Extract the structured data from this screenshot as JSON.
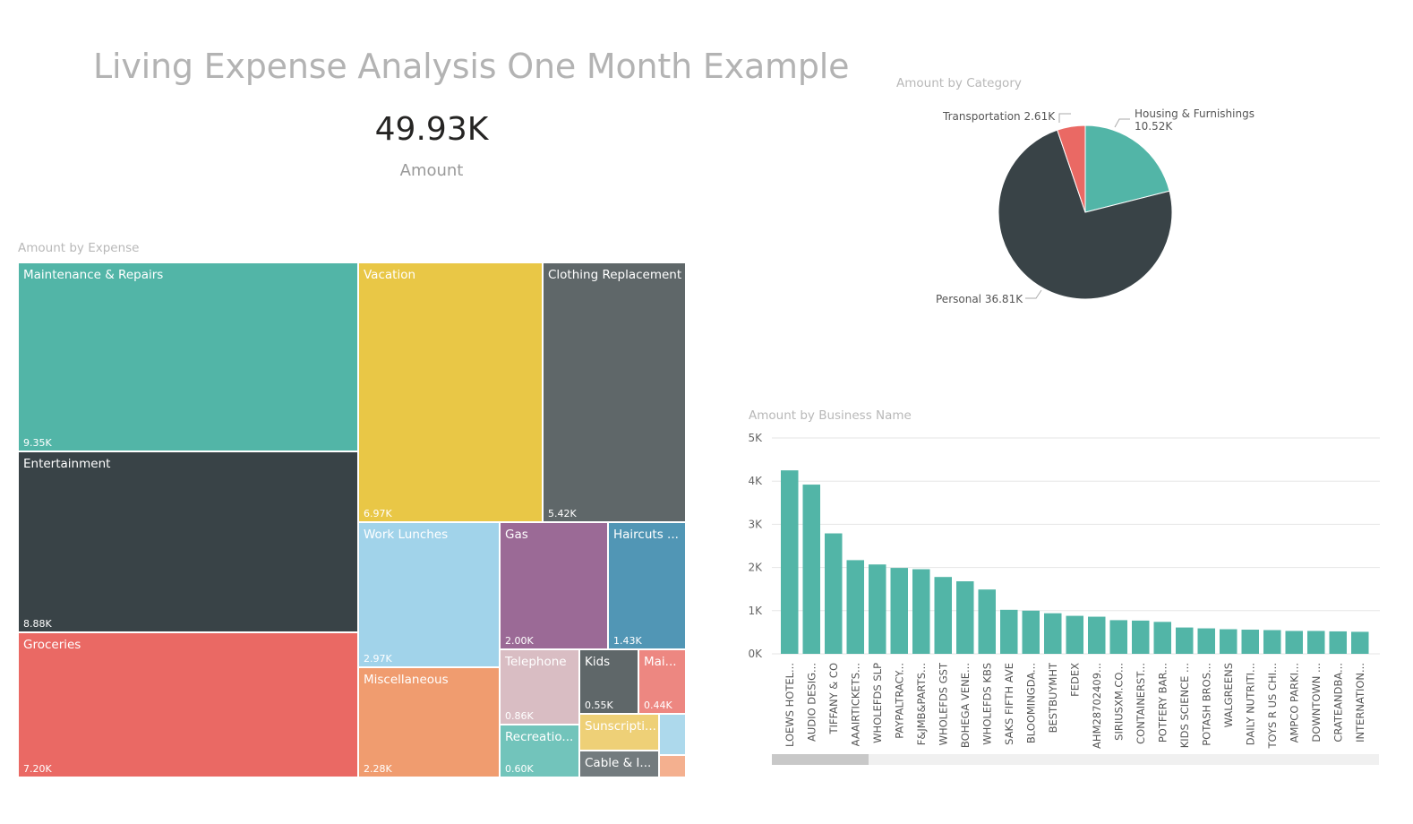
{
  "header": {
    "title": "Living Expense Analysis One Month Example",
    "kpi_value": "49.93K",
    "kpi_label": "Amount"
  },
  "treemap": {
    "title": "Amount by Expense",
    "items": [
      {
        "label": "Maintenance & Repairs",
        "value": "9.35K",
        "color": "#52b5a7"
      },
      {
        "label": "Entertainment",
        "value": "8.88K",
        "color": "#394347"
      },
      {
        "label": "Groceries",
        "value": "7.20K",
        "color": "#ea6964"
      },
      {
        "label": "Vacation",
        "value": "6.97K",
        "color": "#e9c746"
      },
      {
        "label": "Clothing Replacement",
        "value": "5.42K",
        "color": "#5f6769"
      },
      {
        "label": "Work Lunches",
        "value": "2.97K",
        "color": "#a1d3ea"
      },
      {
        "label": "Miscellaneous",
        "value": "2.28K",
        "color": "#f09c6f"
      },
      {
        "label": "Gas",
        "value": "2.00K",
        "color": "#9b6a96"
      },
      {
        "label": "Haircuts ...",
        "value": "1.43K",
        "color": "#5196b5"
      },
      {
        "label": "Telephone",
        "value": "0.86K",
        "color": "#d9bdc3"
      },
      {
        "label": "Kids",
        "value": "0.55K",
        "color": "#5f6769"
      },
      {
        "label": "Mai...",
        "value": "0.44K",
        "color": "#ed8781"
      },
      {
        "label": "Recreatio...",
        "value": "0.60K",
        "color": "#72c4bb"
      },
      {
        "label": "Sunscripti...",
        "value": "",
        "color": "#eed077"
      },
      {
        "label": "Cable & I...",
        "value": "",
        "color": "#737b7e"
      },
      {
        "label": "",
        "value": "",
        "color": "#add9ec"
      },
      {
        "label": "",
        "value": "",
        "color": "#f4b08f"
      }
    ]
  },
  "pie": {
    "title": "Amount by Category",
    "slices": [
      {
        "name": "Housing & Furnishings",
        "value": 10.52,
        "label_value": "10.52K",
        "color": "#52b5a7"
      },
      {
        "name": "Personal",
        "value": 36.81,
        "label_value": "36.81K",
        "color": "#394347"
      },
      {
        "name": "Transportation",
        "value": 2.61,
        "label_value": "2.61K",
        "color": "#ea6964"
      }
    ]
  },
  "chart_data": {
    "type": "bar",
    "title": "Amount by Business Name",
    "xlabel": "",
    "ylabel": "",
    "ylim": [
      0,
      5000
    ],
    "yticks": [
      "0K",
      "1K",
      "2K",
      "3K",
      "4K",
      "5K"
    ],
    "grid": true,
    "bar_color": "#52b5a7",
    "categories": [
      "LOEWS HOTEL...",
      "AUDIO DESIG...",
      "TIFFANY & CO",
      "AAAIRTICKETS...",
      "WHOLEFDS SLP",
      "PAYPALTRACY...",
      "F&JMB&PARTS...",
      "WHOLEFDS GST",
      "BOHEGA VENE...",
      "WHOLEFDS KBS",
      "SAKS FIFTH AVE",
      "BLOOMINGDA...",
      "BESTBUYMHT",
      "FEDEX",
      "AHM28702409...",
      "SIRIUSXM.CO...",
      "CONTAINERST...",
      "POTFERY BAR...",
      "KIDS SCIENCE ...",
      "POTASH BROS...",
      "WALGREENS",
      "DAILY NUTRITI...",
      "TOYS R US CHI...",
      "AMPCO PARKI...",
      "DOWNTOWN ...",
      "CRATEANDBA...",
      "INTERNATION..."
    ],
    "values": [
      4250,
      3920,
      2790,
      2170,
      2070,
      1990,
      1960,
      1780,
      1680,
      1490,
      1020,
      1000,
      940,
      880,
      860,
      780,
      770,
      740,
      610,
      590,
      570,
      560,
      550,
      530,
      530,
      520,
      510
    ]
  }
}
